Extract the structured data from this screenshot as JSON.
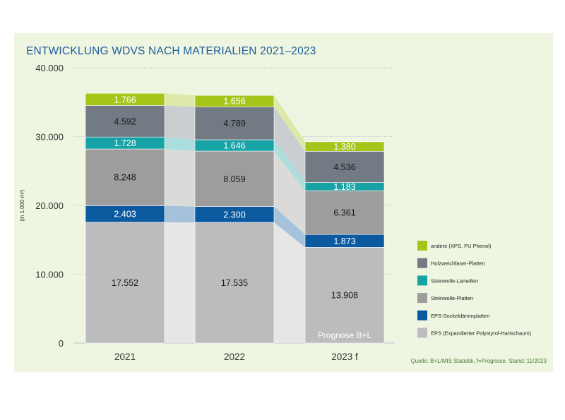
{
  "title": "ENTWICKLUNG WDVS NACH MATERIALIEN 2021–2023",
  "source": "Quelle: B+L/MIS Statistik, f=Prognose, Stand: 11/2023",
  "colors": {
    "panel": "#eef5e0",
    "title": "#1d5d9b",
    "grid": "#9fb7c9",
    "axis_text": "#333333"
  },
  "chart_data": {
    "type": "bar",
    "stacked": true,
    "title": "ENTWICKLUNG WDVS NACH MATERIALIEN 2021–2023",
    "ylabel": "(in 1.000 m²)",
    "xlabel": "",
    "ylim": [
      0,
      40000
    ],
    "yticks": [
      0,
      10000,
      20000,
      30000,
      40000
    ],
    "ytick_labels": [
      "0",
      "10.000",
      "20.000",
      "30.000",
      "40.000"
    ],
    "categories": [
      "2021",
      "2022",
      "2023 f"
    ],
    "annotation": "Prognose B+L",
    "legend_position": "right",
    "series": [
      {
        "name": "EPS (Expandierter Polystyrol-Hartschaum)",
        "color": "#bcbcbe",
        "text_color": "#1a1a1a",
        "values": [
          17552,
          17535,
          13908
        ],
        "labels": [
          "17.552",
          "17.535",
          "13.908"
        ]
      },
      {
        "name": "EPS-Sockeldämmplatten",
        "color": "#0b5aa0",
        "text_color": "#ffffff",
        "values": [
          2403,
          2300,
          1873
        ],
        "labels": [
          "2.403",
          "2.300",
          "1.873"
        ]
      },
      {
        "name": "Steinwolle-Platten",
        "color": "#9c9d9c",
        "text_color": "#1a1a1a",
        "values": [
          8248,
          8059,
          6361
        ],
        "labels": [
          "8.248",
          "8.059",
          "6.361"
        ]
      },
      {
        "name": "Steinwolle-Lamellen",
        "color": "#17a3a6",
        "text_color": "#ffffff",
        "values": [
          1728,
          1646,
          1183
        ],
        "labels": [
          "1.728",
          "1.646",
          "1.183"
        ]
      },
      {
        "name": "Holzweichfaser-Platten",
        "color": "#727a84",
        "text_color": "#1a1a1a",
        "values": [
          4592,
          4789,
          4536
        ],
        "labels": [
          "4.592",
          "4.789",
          "4.536"
        ]
      },
      {
        "name": "andere (XPS, PU Phenol)",
        "color": "#a6c51a",
        "text_color": "#ffffff",
        "values": [
          1766,
          1656,
          1380
        ],
        "labels": [
          "1.766",
          "1.656",
          "1.380"
        ]
      }
    ]
  }
}
